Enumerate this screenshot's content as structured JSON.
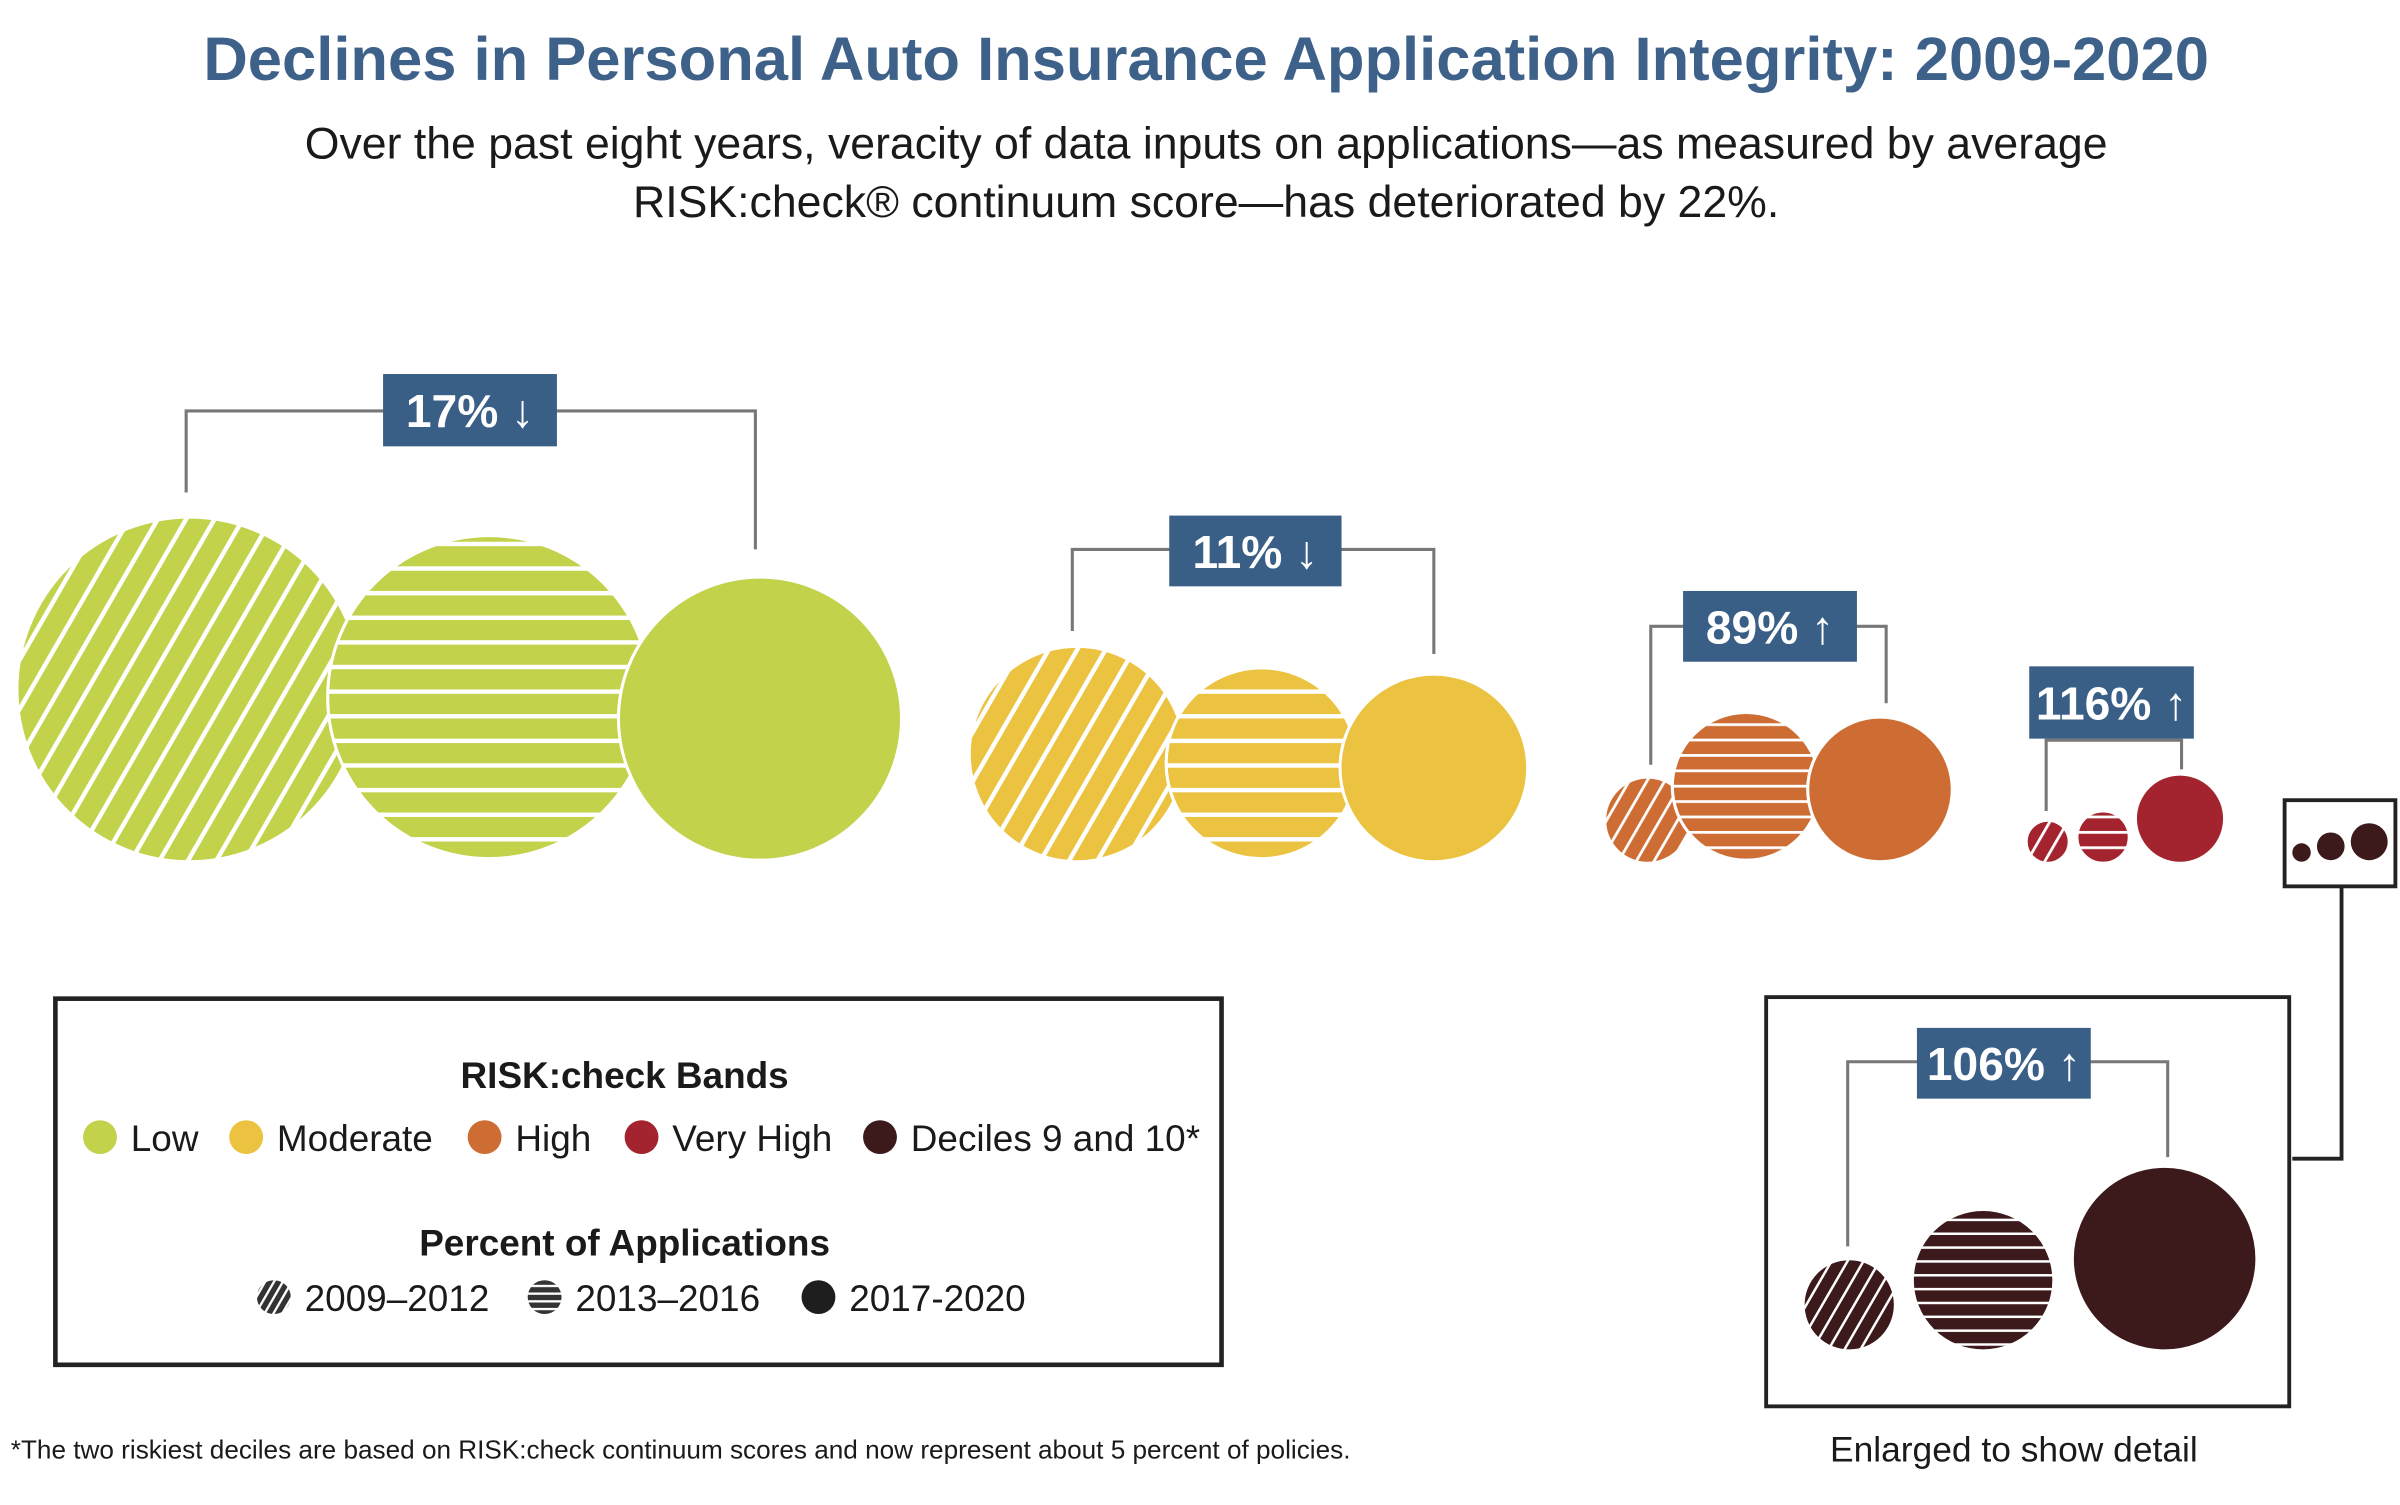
{
  "chart_data": {
    "type": "bubble",
    "title": "Declines in Personal Auto Insurance Application Integrity: 2009-2020",
    "subtitle_lines": [
      "Over the past eight years, veracity of data inputs on applications—as measured by average",
      "RISK:check® continuum score—has deteriorated by 22%."
    ],
    "periods": [
      "2009–2012",
      "2013–2016",
      "2017-2020"
    ],
    "period_patterns": [
      "diagonal-stripes",
      "horizontal-stripes",
      "solid"
    ],
    "groups": [
      {
        "band": "Low",
        "color": "#c2d24b",
        "change_label": "17%",
        "direction": "down",
        "arrow": "↓"
      },
      {
        "band": "Moderate",
        "color": "#ecc241",
        "change_label": "11%",
        "direction": "down",
        "arrow": "↓"
      },
      {
        "band": "High",
        "color": "#cd6d33",
        "change_label": "89%",
        "direction": "up",
        "arrow": "↑"
      },
      {
        "band": "Very High",
        "color": "#a3242e",
        "change_label": "116%",
        "direction": "up",
        "arrow": "↑"
      },
      {
        "band": "Deciles 9 and 10*",
        "color": "#3c1a1c",
        "change_label": "106%",
        "direction": "up",
        "arrow": "↑"
      }
    ],
    "legend": {
      "bands_title": "RISK:check Bands",
      "periods_title": "Percent of Applications"
    },
    "enlarged_caption": "Enlarged to show detail",
    "footnote": "*The two riskiest deciles are based on RISK:check continuum scores and now represent about 5 percent of policies.",
    "label_box_color": "#3a5f87"
  }
}
